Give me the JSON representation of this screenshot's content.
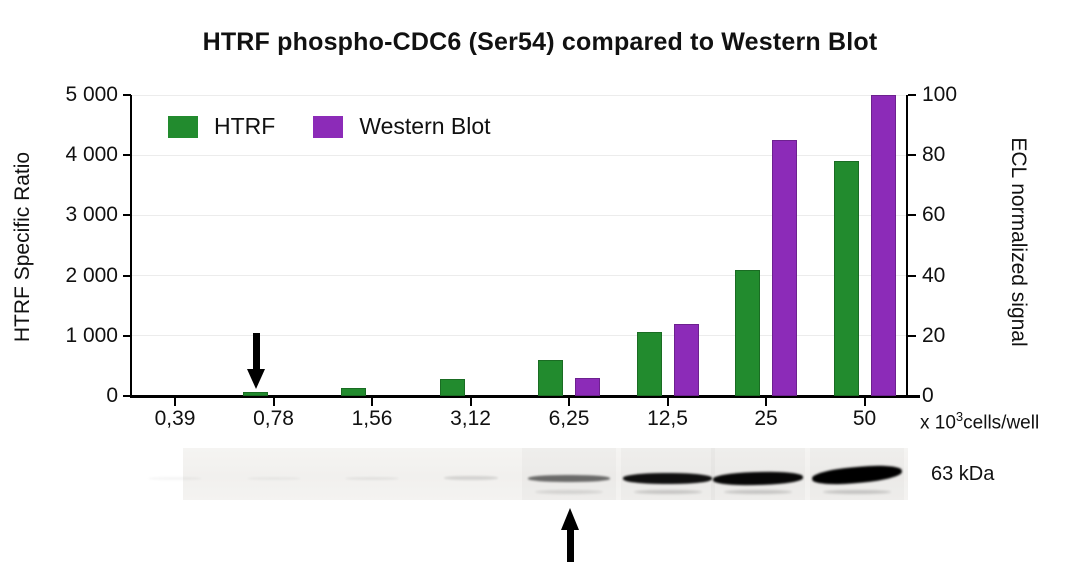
{
  "title": "HTRF phospho-CDC6 (Ser54) compared to Western Blot",
  "chart_data": {
    "type": "bar",
    "categories": [
      "0,39",
      "0,78",
      "1,56",
      "3,12",
      "6,25",
      "12,5",
      "25",
      "50"
    ],
    "x_axis_unit": {
      "prefix": "x 10",
      "exponent": "3",
      "suffix": "cells/well"
    },
    "series": [
      {
        "name": "HTRF",
        "axis": "left",
        "color": "#228b2e",
        "values": [
          0,
          60,
          130,
          280,
          590,
          1060,
          2090,
          3900
        ]
      },
      {
        "name": "Western Blot",
        "axis": "right",
        "color": "#8c2bb8",
        "values": [
          0,
          0,
          0,
          0,
          6,
          24,
          85,
          100
        ]
      }
    ],
    "left_axis": {
      "label": "HTRF Specific Ratio",
      "max": 5000,
      "min": 0,
      "tick_labels": [
        "0",
        "1 000",
        "2 000",
        "3 000",
        "4 000",
        "5 000"
      ]
    },
    "right_axis": {
      "label": "ECL normalized signal",
      "max": 100,
      "min": 0,
      "tick_labels": [
        "0",
        "20",
        "40",
        "60",
        "80",
        "100"
      ]
    },
    "legend_position": "top-left-inside",
    "grid": true
  },
  "annotations": {
    "chart_arrow": {
      "direction": "down",
      "points_to": "HTRF bar at 0,78"
    },
    "blot_arrow": {
      "direction": "up",
      "points_to": "blot lane at 6,25"
    }
  },
  "western_blot": {
    "label": "63 kDa",
    "lanes": [
      "0,39",
      "0,78",
      "1,56",
      "3,12",
      "6,25",
      "12,5",
      "25",
      "50"
    ],
    "band_intensity": [
      0.04,
      0.04,
      0.06,
      0.12,
      0.55,
      0.93,
      0.97,
      1.0
    ],
    "band_thickness": [
      3,
      3,
      3,
      4,
      7,
      11,
      13,
      16
    ]
  }
}
